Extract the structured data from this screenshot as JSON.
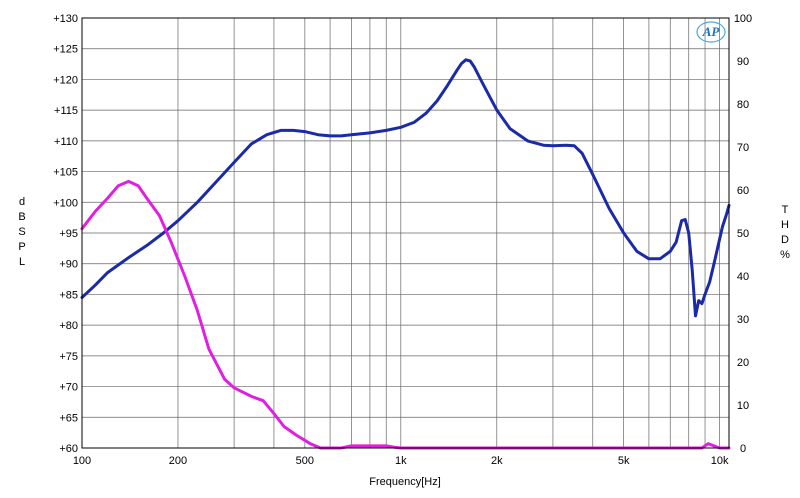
{
  "chart_data": {
    "type": "line",
    "xlabel": "Frequency[Hz]",
    "ylabel": "dBSPL",
    "y2label": "THD%",
    "x_scale": "log",
    "xlim": [
      100,
      10700
    ],
    "ylim": [
      60,
      130
    ],
    "y2lim": [
      0,
      100
    ],
    "grid": true,
    "legend": "none",
    "logo": "AP",
    "x_ticks": [
      {
        "value": 100,
        "label": "100"
      },
      {
        "value": 200,
        "label": "200"
      },
      {
        "value": 500,
        "label": "500"
      },
      {
        "value": 1000,
        "label": "1k"
      },
      {
        "value": 2000,
        "label": "2k"
      },
      {
        "value": 5000,
        "label": "5k"
      },
      {
        "value": 10000,
        "label": "10k"
      }
    ],
    "x_minor_grid": [
      300,
      400,
      600,
      700,
      800,
      900,
      3000,
      4000,
      6000,
      7000,
      8000,
      9000
    ],
    "y_ticks": [
      {
        "value": 60,
        "label": "+60"
      },
      {
        "value": 65,
        "label": "+65"
      },
      {
        "value": 70,
        "label": "+70"
      },
      {
        "value": 75,
        "label": "+75"
      },
      {
        "value": 80,
        "label": "+80"
      },
      {
        "value": 85,
        "label": "+85"
      },
      {
        "value": 90,
        "label": "+90"
      },
      {
        "value": 95,
        "label": "+95"
      },
      {
        "value": 100,
        "label": "+100"
      },
      {
        "value": 105,
        "label": "+105"
      },
      {
        "value": 110,
        "label": "+110"
      },
      {
        "value": 115,
        "label": "+115"
      },
      {
        "value": 120,
        "label": "+120"
      },
      {
        "value": 125,
        "label": "+125"
      },
      {
        "value": 130,
        "label": "+130"
      }
    ],
    "y2_ticks": [
      {
        "value": 0,
        "label": "0"
      },
      {
        "value": 10,
        "label": "10"
      },
      {
        "value": 20,
        "label": "20"
      },
      {
        "value": 30,
        "label": "30"
      },
      {
        "value": 40,
        "label": "40"
      },
      {
        "value": 50,
        "label": "50"
      },
      {
        "value": 60,
        "label": "60"
      },
      {
        "value": 70,
        "label": "70"
      },
      {
        "value": 80,
        "label": "80"
      },
      {
        "value": 90,
        "label": "90"
      },
      {
        "value": 100,
        "label": "100"
      }
    ],
    "series": [
      {
        "axis": "left",
        "color": "#1a2aa8",
        "x": [
          100,
          110,
          120,
          140,
          160,
          180,
          200,
          230,
          260,
          300,
          340,
          380,
          420,
          460,
          500,
          550,
          600,
          650,
          700,
          800,
          900,
          1000,
          1100,
          1200,
          1300,
          1400,
          1500,
          1550,
          1600,
          1650,
          1700,
          1800,
          2000,
          2200,
          2500,
          2800,
          3000,
          3300,
          3500,
          3700,
          4000,
          4500,
          5000,
          5500,
          6000,
          6500,
          7000,
          7300,
          7600,
          7800,
          8000,
          8200,
          8400,
          8600,
          8800,
          9000,
          9300,
          9600,
          9900,
          10200,
          10500,
          10700
        ],
        "values": [
          84.5,
          86.5,
          88.5,
          91.0,
          93.0,
          95.0,
          97.0,
          100.0,
          103.0,
          106.5,
          109.5,
          111.0,
          111.7,
          111.7,
          111.5,
          111.0,
          110.8,
          110.8,
          111.0,
          111.3,
          111.7,
          112.2,
          113.0,
          114.5,
          116.5,
          119.0,
          121.5,
          122.6,
          123.2,
          123.0,
          122.0,
          119.5,
          115.0,
          112.0,
          110.0,
          109.3,
          109.2,
          109.3,
          109.2,
          108.0,
          104.5,
          99.0,
          95.0,
          92.0,
          90.8,
          90.8,
          92.0,
          93.5,
          97.0,
          97.2,
          95.0,
          89.0,
          81.5,
          84.0,
          83.5,
          85.0,
          87.0,
          90.0,
          93.0,
          96.0,
          98.0,
          99.5
        ]
      },
      {
        "axis": "right",
        "color": "#e020e0",
        "x": [
          100,
          110,
          120,
          130,
          140,
          150,
          160,
          175,
          190,
          210,
          230,
          250,
          280,
          300,
          340,
          370,
          400,
          430,
          470,
          520,
          560,
          600,
          650,
          700,
          750,
          800,
          850,
          900,
          950,
          1000,
          1100,
          1500,
          2000,
          3000,
          5000,
          7000,
          8800,
          9200,
          10000,
          10700
        ],
        "values": [
          51,
          55,
          58,
          61,
          62,
          61,
          58,
          54,
          48,
          40,
          32,
          23,
          16,
          14,
          12,
          11,
          8,
          5,
          3,
          1,
          0,
          0,
          0,
          0.5,
          0.5,
          0.5,
          0.5,
          0.5,
          0.2,
          0,
          0,
          0,
          0,
          0,
          0,
          0,
          0,
          1,
          0,
          0
        ]
      }
    ]
  }
}
